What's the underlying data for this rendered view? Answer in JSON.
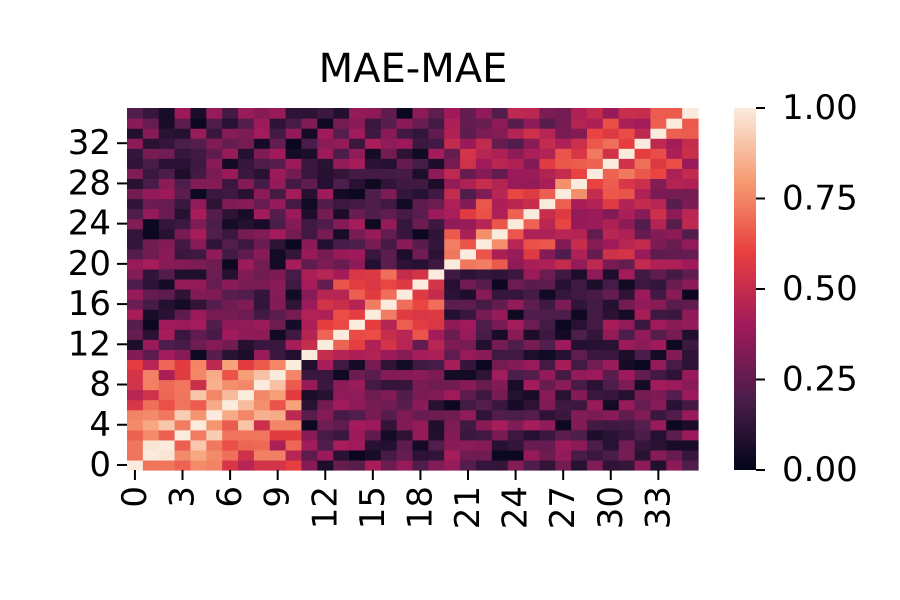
{
  "chart_data": {
    "type": "heatmap",
    "title": "MAE-MAE",
    "rows": 36,
    "cols": 36,
    "x_tick_labels": [
      "0",
      "3",
      "6",
      "9",
      "12",
      "15",
      "18",
      "21",
      "24",
      "27",
      "30",
      "33"
    ],
    "y_tick_labels": [
      "0",
      "4",
      "8",
      "12",
      "16",
      "20",
      "24",
      "28",
      "32"
    ],
    "colorbar": {
      "range": [
        0,
        1
      ],
      "tick_labels": [
        "0.00",
        "0.25",
        "0.50",
        "0.75",
        "1.00"
      ],
      "colormap": "rocket",
      "colors": [
        "#03051a",
        "#4c1d4b",
        "#a11a5b",
        "#e83f3f",
        "#f69c73",
        "#faebdd"
      ]
    },
    "blocks": [
      {
        "range": [
          0,
          11
        ],
        "mean": 0.58
      },
      {
        "range": [
          11,
          20
        ],
        "mean": 0.42
      },
      {
        "range": [
          20,
          36
        ],
        "mean": 0.38
      }
    ],
    "cross_block_mean": 0.22,
    "diagonal": 1.0
  }
}
